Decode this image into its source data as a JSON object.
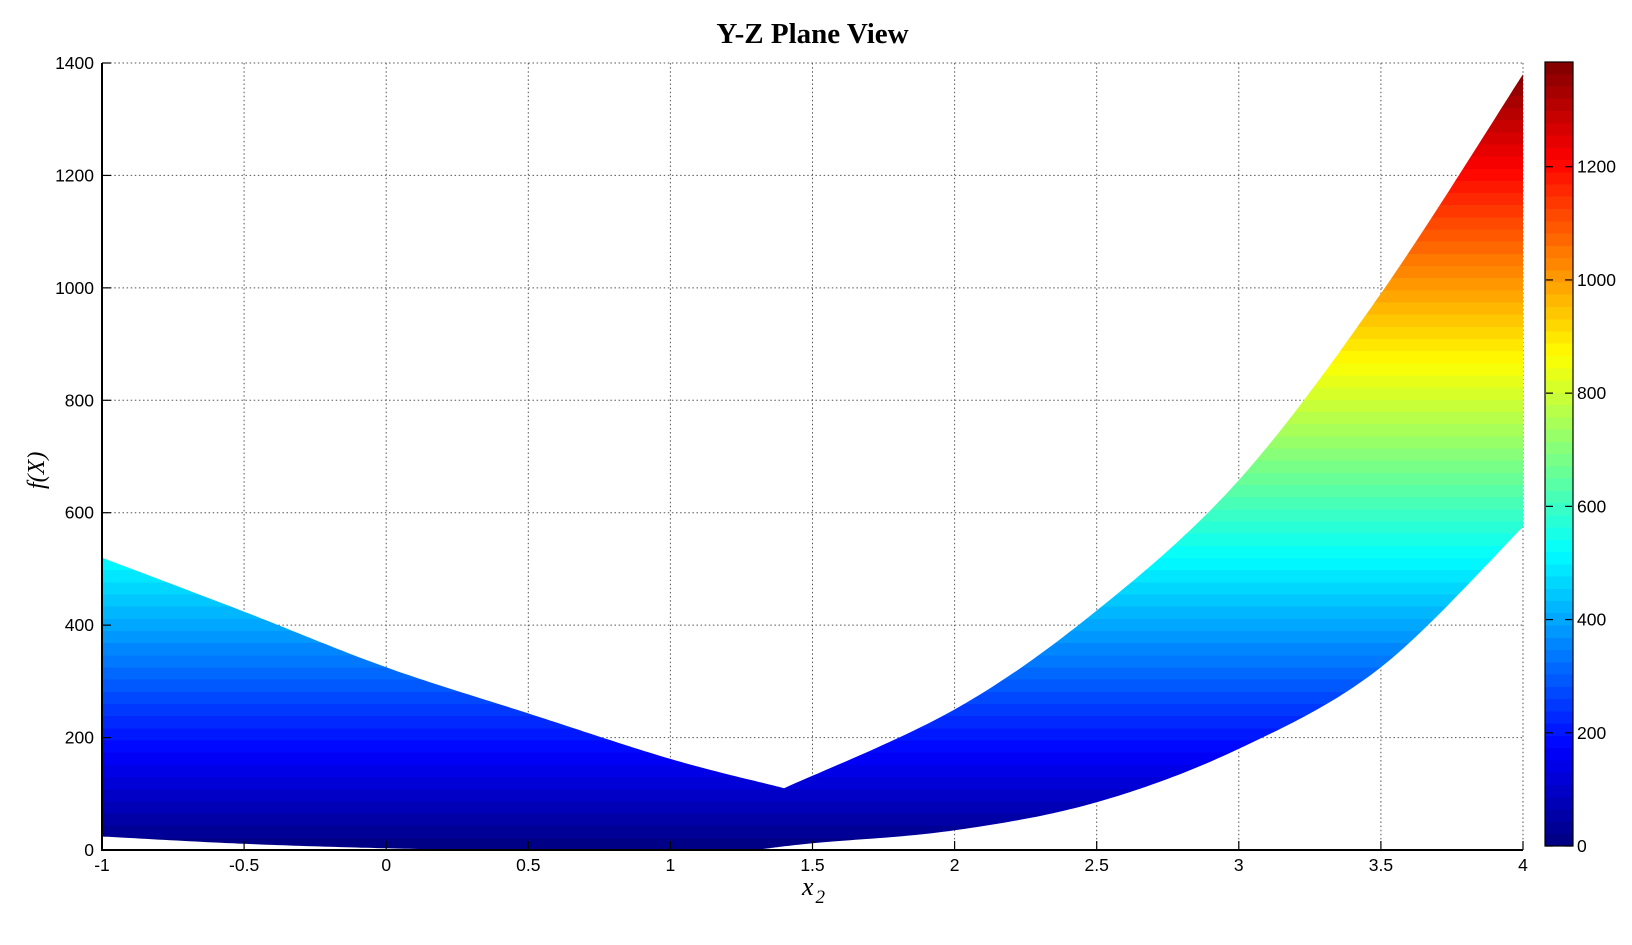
{
  "figure": {
    "title": "Y-Z Plane View",
    "xlabel_base": "x",
    "xlabel_sub": "2",
    "ylabel": "f(X)"
  },
  "chart_data": {
    "type": "area",
    "title": "Y-Z Plane View",
    "xlabel": "x_2",
    "ylabel": "f(X)",
    "xlim": [
      -1,
      4
    ],
    "ylim": [
      0,
      1400
    ],
    "x_ticks": [
      -1,
      -0.5,
      0,
      0.5,
      1,
      1.5,
      2,
      2.5,
      3,
      3.5,
      4
    ],
    "y_ticks": [
      0,
      200,
      400,
      600,
      800,
      1000,
      1200,
      1400
    ],
    "grid": true,
    "grid_style": "dotted",
    "legend": "none",
    "colormap": "jet",
    "colormap_levels": 64,
    "color_range": [
      0,
      1385
    ],
    "colorbar": {
      "position": "right",
      "ticks": [
        0,
        200,
        400,
        600,
        800,
        1000,
        1200
      ]
    },
    "band": {
      "description": "Projection of surface f(X) onto the x2-f plane: region between lower and upper envelopes, fill colored by f value with jet colormap",
      "upper_envelope_branches": [
        [
          [
            -1,
            520
          ],
          [
            -0.5,
            424
          ],
          [
            0,
            325
          ],
          [
            0.5,
            243
          ],
          [
            1,
            162
          ],
          [
            1.4,
            110
          ]
        ],
        [
          [
            1.4,
            110
          ],
          [
            2,
            250
          ],
          [
            2.5,
            426
          ],
          [
            3,
            658
          ],
          [
            3.5,
            990
          ],
          [
            4,
            1380
          ]
        ]
      ],
      "lower_envelope_branches": [
        [
          [
            -1,
            24
          ],
          [
            -0.5,
            11
          ],
          [
            0,
            3
          ],
          [
            0.35,
            0
          ]
        ],
        [
          [
            0.35,
            0
          ],
          [
            1.3,
            0
          ]
        ],
        [
          [
            1.3,
            0
          ],
          [
            1.5,
            12
          ],
          [
            2,
            35
          ],
          [
            2.5,
            85
          ],
          [
            3,
            180
          ],
          [
            3.5,
            325
          ],
          [
            4,
            575
          ]
        ]
      ],
      "kink": {
        "x": 1.4,
        "f": 110
      },
      "left_edge": {
        "x": -1,
        "lower": 24,
        "upper": 520
      },
      "right_edge": {
        "x": 4,
        "lower": 575,
        "upper": 1380
      }
    },
    "colors": {
      "background": "#ffffff",
      "axis": "#000000",
      "grid_dots": "#555555",
      "tick_labels": "#000000"
    }
  }
}
